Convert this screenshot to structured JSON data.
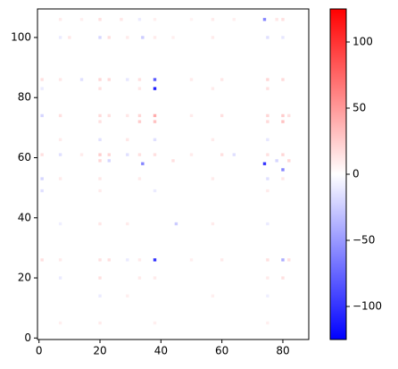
{
  "chart_data": {
    "type": "heatmap",
    "xlim": [
      -0.5,
      88.5
    ],
    "ylim": [
      -0.5,
      109.5
    ],
    "xticks": [
      0,
      20,
      40,
      60,
      80
    ],
    "yticks": [
      0,
      20,
      40,
      60,
      80,
      100
    ],
    "colormap": "bwr",
    "colorbar": {
      "lim": [
        -125,
        125
      ],
      "ticks": [
        {
          "value": -100,
          "label": "−100"
        },
        {
          "value": -50,
          "label": "−50"
        },
        0,
        50,
        100
      ]
    },
    "cells": [
      [
        7,
        106,
        10
      ],
      [
        14,
        106,
        8
      ],
      [
        20,
        106,
        15
      ],
      [
        27,
        106,
        12
      ],
      [
        33,
        106,
        -10
      ],
      [
        38,
        106,
        8
      ],
      [
        50,
        106,
        6
      ],
      [
        57,
        106,
        10
      ],
      [
        64,
        106,
        8
      ],
      [
        74,
        106,
        -60
      ],
      [
        78,
        106,
        12
      ],
      [
        80,
        106,
        15
      ],
      [
        7,
        100,
        -10
      ],
      [
        10,
        100,
        12
      ],
      [
        20,
        100,
        -20
      ],
      [
        23,
        100,
        15
      ],
      [
        29,
        100,
        10
      ],
      [
        34,
        100,
        -25
      ],
      [
        38,
        100,
        10
      ],
      [
        44,
        100,
        8
      ],
      [
        57,
        100,
        10
      ],
      [
        75,
        100,
        -15
      ],
      [
        80,
        100,
        -12
      ],
      [
        1,
        86,
        15
      ],
      [
        7,
        86,
        12
      ],
      [
        14,
        86,
        -15
      ],
      [
        20,
        86,
        20
      ],
      [
        23,
        86,
        18
      ],
      [
        29,
        86,
        -12
      ],
      [
        33,
        86,
        15
      ],
      [
        38,
        86,
        -80
      ],
      [
        50,
        86,
        10
      ],
      [
        60,
        86,
        12
      ],
      [
        75,
        86,
        20
      ],
      [
        80,
        86,
        18
      ],
      [
        1,
        83,
        -10
      ],
      [
        20,
        83,
        15
      ],
      [
        33,
        83,
        12
      ],
      [
        38,
        83,
        -110
      ],
      [
        57,
        83,
        10
      ],
      [
        75,
        83,
        15
      ],
      [
        1,
        74,
        -20
      ],
      [
        7,
        74,
        15
      ],
      [
        20,
        74,
        18
      ],
      [
        23,
        74,
        15
      ],
      [
        29,
        74,
        12
      ],
      [
        33,
        74,
        20
      ],
      [
        38,
        74,
        40
      ],
      [
        50,
        74,
        10
      ],
      [
        60,
        74,
        15
      ],
      [
        75,
        74,
        20
      ],
      [
        80,
        74,
        25
      ],
      [
        82,
        74,
        15
      ],
      [
        20,
        72,
        15
      ],
      [
        33,
        72,
        25
      ],
      [
        38,
        72,
        30
      ],
      [
        75,
        72,
        18
      ],
      [
        80,
        72,
        30
      ],
      [
        7,
        66,
        10
      ],
      [
        20,
        66,
        -15
      ],
      [
        29,
        66,
        12
      ],
      [
        38,
        66,
        -15
      ],
      [
        57,
        66,
        10
      ],
      [
        75,
        66,
        -12
      ],
      [
        1,
        61,
        15
      ],
      [
        7,
        61,
        -15
      ],
      [
        14,
        61,
        10
      ],
      [
        20,
        61,
        25
      ],
      [
        23,
        61,
        20
      ],
      [
        29,
        61,
        -15
      ],
      [
        33,
        61,
        15
      ],
      [
        38,
        61,
        15
      ],
      [
        50,
        61,
        10
      ],
      [
        60,
        61,
        15
      ],
      [
        64,
        61,
        -15
      ],
      [
        75,
        61,
        15
      ],
      [
        80,
        61,
        20
      ],
      [
        20,
        59,
        20
      ],
      [
        23,
        59,
        -20
      ],
      [
        34,
        58,
        -60
      ],
      [
        44,
        59,
        15
      ],
      [
        74,
        58,
        -100
      ],
      [
        78,
        59,
        -20
      ],
      [
        80,
        56,
        -60
      ],
      [
        82,
        59,
        20
      ],
      [
        1,
        53,
        -20
      ],
      [
        7,
        53,
        10
      ],
      [
        20,
        53,
        12
      ],
      [
        33,
        53,
        10
      ],
      [
        57,
        53,
        10
      ],
      [
        75,
        53,
        -15
      ],
      [
        80,
        53,
        12
      ],
      [
        1,
        49,
        -15
      ],
      [
        20,
        49,
        10
      ],
      [
        38,
        49,
        -10
      ],
      [
        75,
        49,
        10
      ],
      [
        7,
        38,
        -8
      ],
      [
        20,
        38,
        12
      ],
      [
        29,
        38,
        10
      ],
      [
        45,
        38,
        -25
      ],
      [
        57,
        38,
        10
      ],
      [
        75,
        38,
        -10
      ],
      [
        1,
        26,
        15
      ],
      [
        7,
        26,
        10
      ],
      [
        20,
        26,
        15
      ],
      [
        23,
        26,
        15
      ],
      [
        29,
        26,
        -10
      ],
      [
        33,
        26,
        10
      ],
      [
        38,
        26,
        -100
      ],
      [
        50,
        26,
        8
      ],
      [
        60,
        26,
        10
      ],
      [
        75,
        26,
        15
      ],
      [
        80,
        26,
        -40
      ],
      [
        82,
        26,
        15
      ],
      [
        7,
        20,
        -10
      ],
      [
        20,
        20,
        15
      ],
      [
        33,
        20,
        10
      ],
      [
        38,
        20,
        10
      ],
      [
        75,
        20,
        10
      ],
      [
        80,
        20,
        15
      ],
      [
        20,
        14,
        -10
      ],
      [
        29,
        14,
        8
      ],
      [
        57,
        14,
        8
      ],
      [
        75,
        14,
        -8
      ],
      [
        7,
        5,
        8
      ],
      [
        20,
        5,
        10
      ],
      [
        38,
        5,
        8
      ],
      [
        75,
        5,
        8
      ]
    ]
  }
}
